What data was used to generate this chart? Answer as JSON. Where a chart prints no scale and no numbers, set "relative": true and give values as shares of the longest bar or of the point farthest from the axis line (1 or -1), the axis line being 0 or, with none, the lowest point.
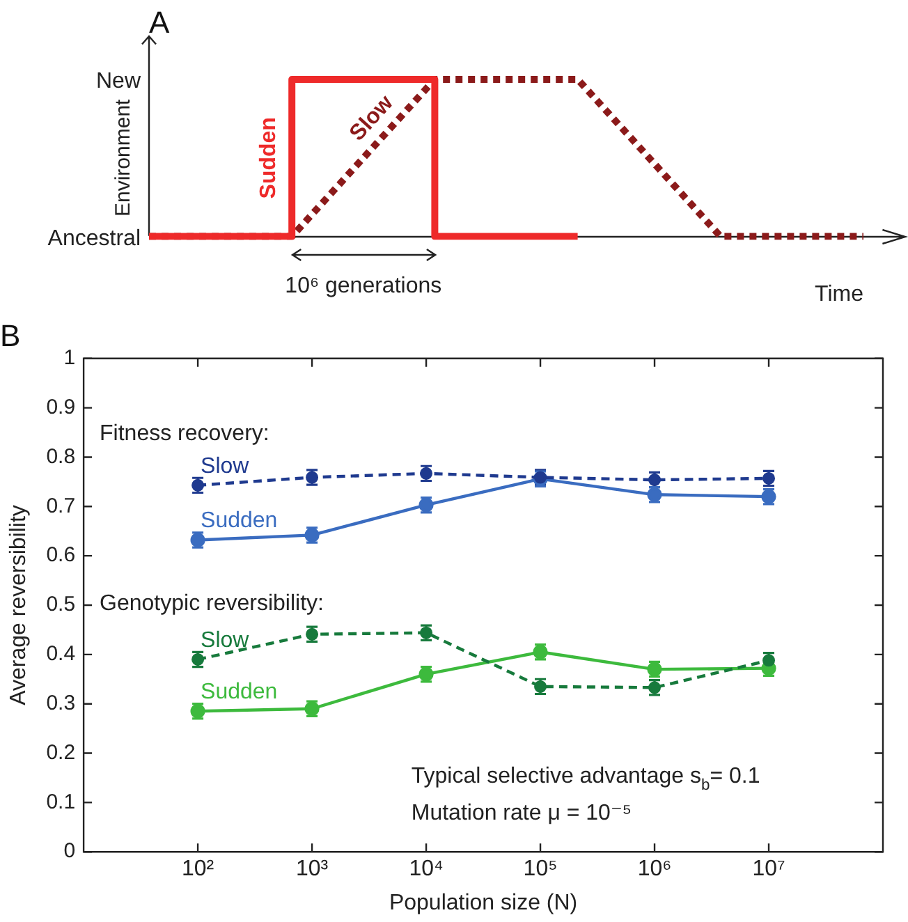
{
  "chart_data": [
    {
      "type": "line",
      "title": "A",
      "xlabel": "Time",
      "ylabel": "Environment",
      "categories": [
        null,
        null,
        null,
        null,
        null,
        null
      ],
      "relative": true,
      "annotations": [
        "10⁶ generations",
        "Ancestral",
        "New"
      ],
      "grid": false,
      "legend": false,
      "marker": "none",
      "series": [
        {
          "name": "Sudden",
          "type": "step",
          "color": "#ee2a2a",
          "line_style": "solid",
          "values": [
            0,
            1,
            0,
            0,
            null,
            null
          ]
        },
        {
          "name": "Slow",
          "type": "line",
          "color": "#8b1a1a",
          "line_style": "dotted",
          "values": [
            0,
            0,
            1,
            1,
            0,
            0
          ]
        }
      ]
    },
    {
      "type": "line",
      "title": "B",
      "xlabel": "Population size (N)",
      "ylabel": "Average reversibility",
      "log": "x",
      "x": [
        100,
        1000,
        10000,
        100000,
        1000000,
        10000000
      ],
      "xlim": [
        10,
        100000000
      ],
      "xticks": [
        {
          "value": 100,
          "label": "10²"
        },
        {
          "value": 1000,
          "label": "10³"
        },
        {
          "value": 10000,
          "label": "10⁴"
        },
        {
          "value": 100000,
          "label": "10⁵"
        },
        {
          "value": 1000000,
          "label": "10⁶"
        },
        {
          "value": 10000000,
          "label": "10⁷"
        }
      ],
      "ylim": [
        0,
        1
      ],
      "yticks": [
        0,
        0.1,
        0.2,
        0.3,
        0.4,
        0.5,
        0.6,
        0.7,
        0.8,
        0.9,
        1
      ],
      "grid": false,
      "legend": false,
      "marker": "circle",
      "annotations": [
        "Fitness recovery:",
        "Genotypic reversibility:",
        "Typical selective advantage s$_{b}$= 0.1",
        "Mutation rate μ = 10⁻⁵"
      ],
      "series": [
        {
          "name": "Slow",
          "color": "#1f3a8f",
          "line_style": "dashed",
          "values": [
            0.743,
            0.759,
            0.767,
            0.759,
            0.754,
            0.757
          ],
          "errors": [
            0.015,
            0.015,
            0.015,
            0.015,
            0.015,
            0.015
          ]
        },
        {
          "name": "Sudden",
          "color": "#3a6cc0",
          "line_style": "solid",
          "values": [
            0.632,
            0.642,
            0.703,
            0.756,
            0.724,
            0.72
          ],
          "errors": [
            0.015,
            0.015,
            0.015,
            0.015,
            0.015,
            0.015
          ]
        },
        {
          "name": "Slow",
          "color": "#177a3c",
          "line_style": "dashed",
          "values": [
            0.39,
            0.441,
            0.444,
            0.335,
            0.333,
            0.388
          ],
          "errors": [
            0.015,
            0.015,
            0.015,
            0.015,
            0.015,
            0.015
          ]
        },
        {
          "name": "Sudden",
          "color": "#3dba3d",
          "line_style": "solid",
          "values": [
            0.285,
            0.29,
            0.36,
            0.405,
            0.37,
            0.372
          ],
          "errors": [
            0.015,
            0.015,
            0.015,
            0.015,
            0.015,
            0.015
          ]
        }
      ]
    }
  ]
}
